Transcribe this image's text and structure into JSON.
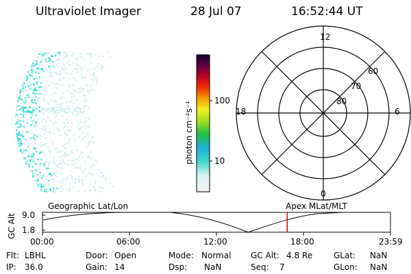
{
  "header": {
    "instrument": "Ultraviolet Imager",
    "date": "28 Jul 07",
    "time": "16:52:44 UT"
  },
  "colorbar": {
    "unit_label": "photon cm⁻²s⁻¹",
    "ticks": [
      "100",
      "10"
    ]
  },
  "polar": {
    "mlt_labels": [
      "12",
      "18",
      "6",
      "0"
    ],
    "lat_labels": [
      "60",
      "70",
      "80"
    ]
  },
  "timeline": {
    "left_label": "Geographic Lat/Lon",
    "right_label": "Apex MLat/MLT",
    "axis_title": "GC Alt",
    "y_ticks": [
      "9.0",
      "1.8"
    ],
    "x_ticks": [
      "00:00",
      "06:00",
      "12:00",
      "18:00",
      "23:59"
    ],
    "current_time_fraction": 0.7033,
    "marker_color": "#d40000"
  },
  "info": {
    "row1": [
      {
        "label": "Flt:",
        "value": "LBHL"
      },
      {
        "label": "Door:",
        "value": "Open"
      },
      {
        "label": "Mode:",
        "value": "Normal"
      },
      {
        "label": "GC Alt:",
        "value": "4.8 Re"
      },
      {
        "label": "GLat:",
        "value": "NaN"
      }
    ],
    "row2": [
      {
        "label": "IP:",
        "value": "36.0"
      },
      {
        "label": "Gain:",
        "value": "14"
      },
      {
        "label": "Dsp:",
        "value": "NaN"
      },
      {
        "label": "Seq:",
        "value": "7"
      },
      {
        "label": "GLon:",
        "value": "NaN"
      }
    ]
  },
  "colors": {
    "aurora_dot": "#35e0d8",
    "aurora_pale": "#cfeeee"
  }
}
